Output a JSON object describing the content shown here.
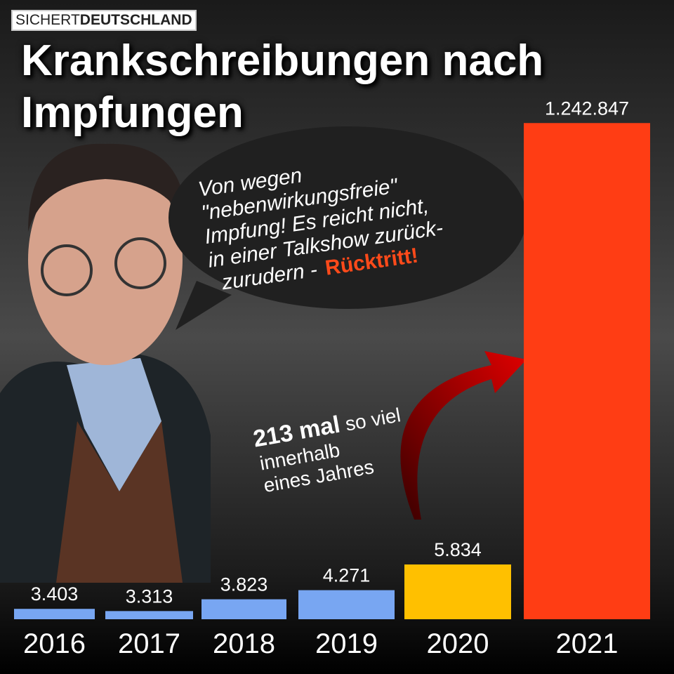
{
  "brand": {
    "light": "SICHERT",
    "bold": "DEUTSCHLAND"
  },
  "title": "Krankschreibungen nach Impfungen",
  "bubble": {
    "lines": [
      "Von wegen",
      "\"nebenwirkungsfreie\"",
      "Impfung! Es reicht nicht,",
      "in einer Talkshow zurück-",
      "zurudern -"
    ],
    "emphasis": "Rücktritt!"
  },
  "annotation": {
    "bold": "213 mal",
    "rest": "so viel",
    "lines": [
      "innerhalb",
      "eines Jahres"
    ]
  },
  "chart_data": {
    "type": "bar",
    "categories": [
      "2016",
      "2017",
      "2018",
      "2019",
      "2020",
      "2021"
    ],
    "values": [
      3403,
      3313,
      3823,
      4271,
      5834,
      1242847
    ],
    "value_labels": [
      "3.403",
      "3.313",
      "3.823",
      "4.271",
      "5.834",
      "1.242.847"
    ],
    "colors": [
      "#78a6f2",
      "#78a6f2",
      "#78a6f2",
      "#78a6f2",
      "#ffc000",
      "#ff3d14"
    ],
    "log_scale": true,
    "ylim": [
      3000,
      1300000
    ]
  }
}
